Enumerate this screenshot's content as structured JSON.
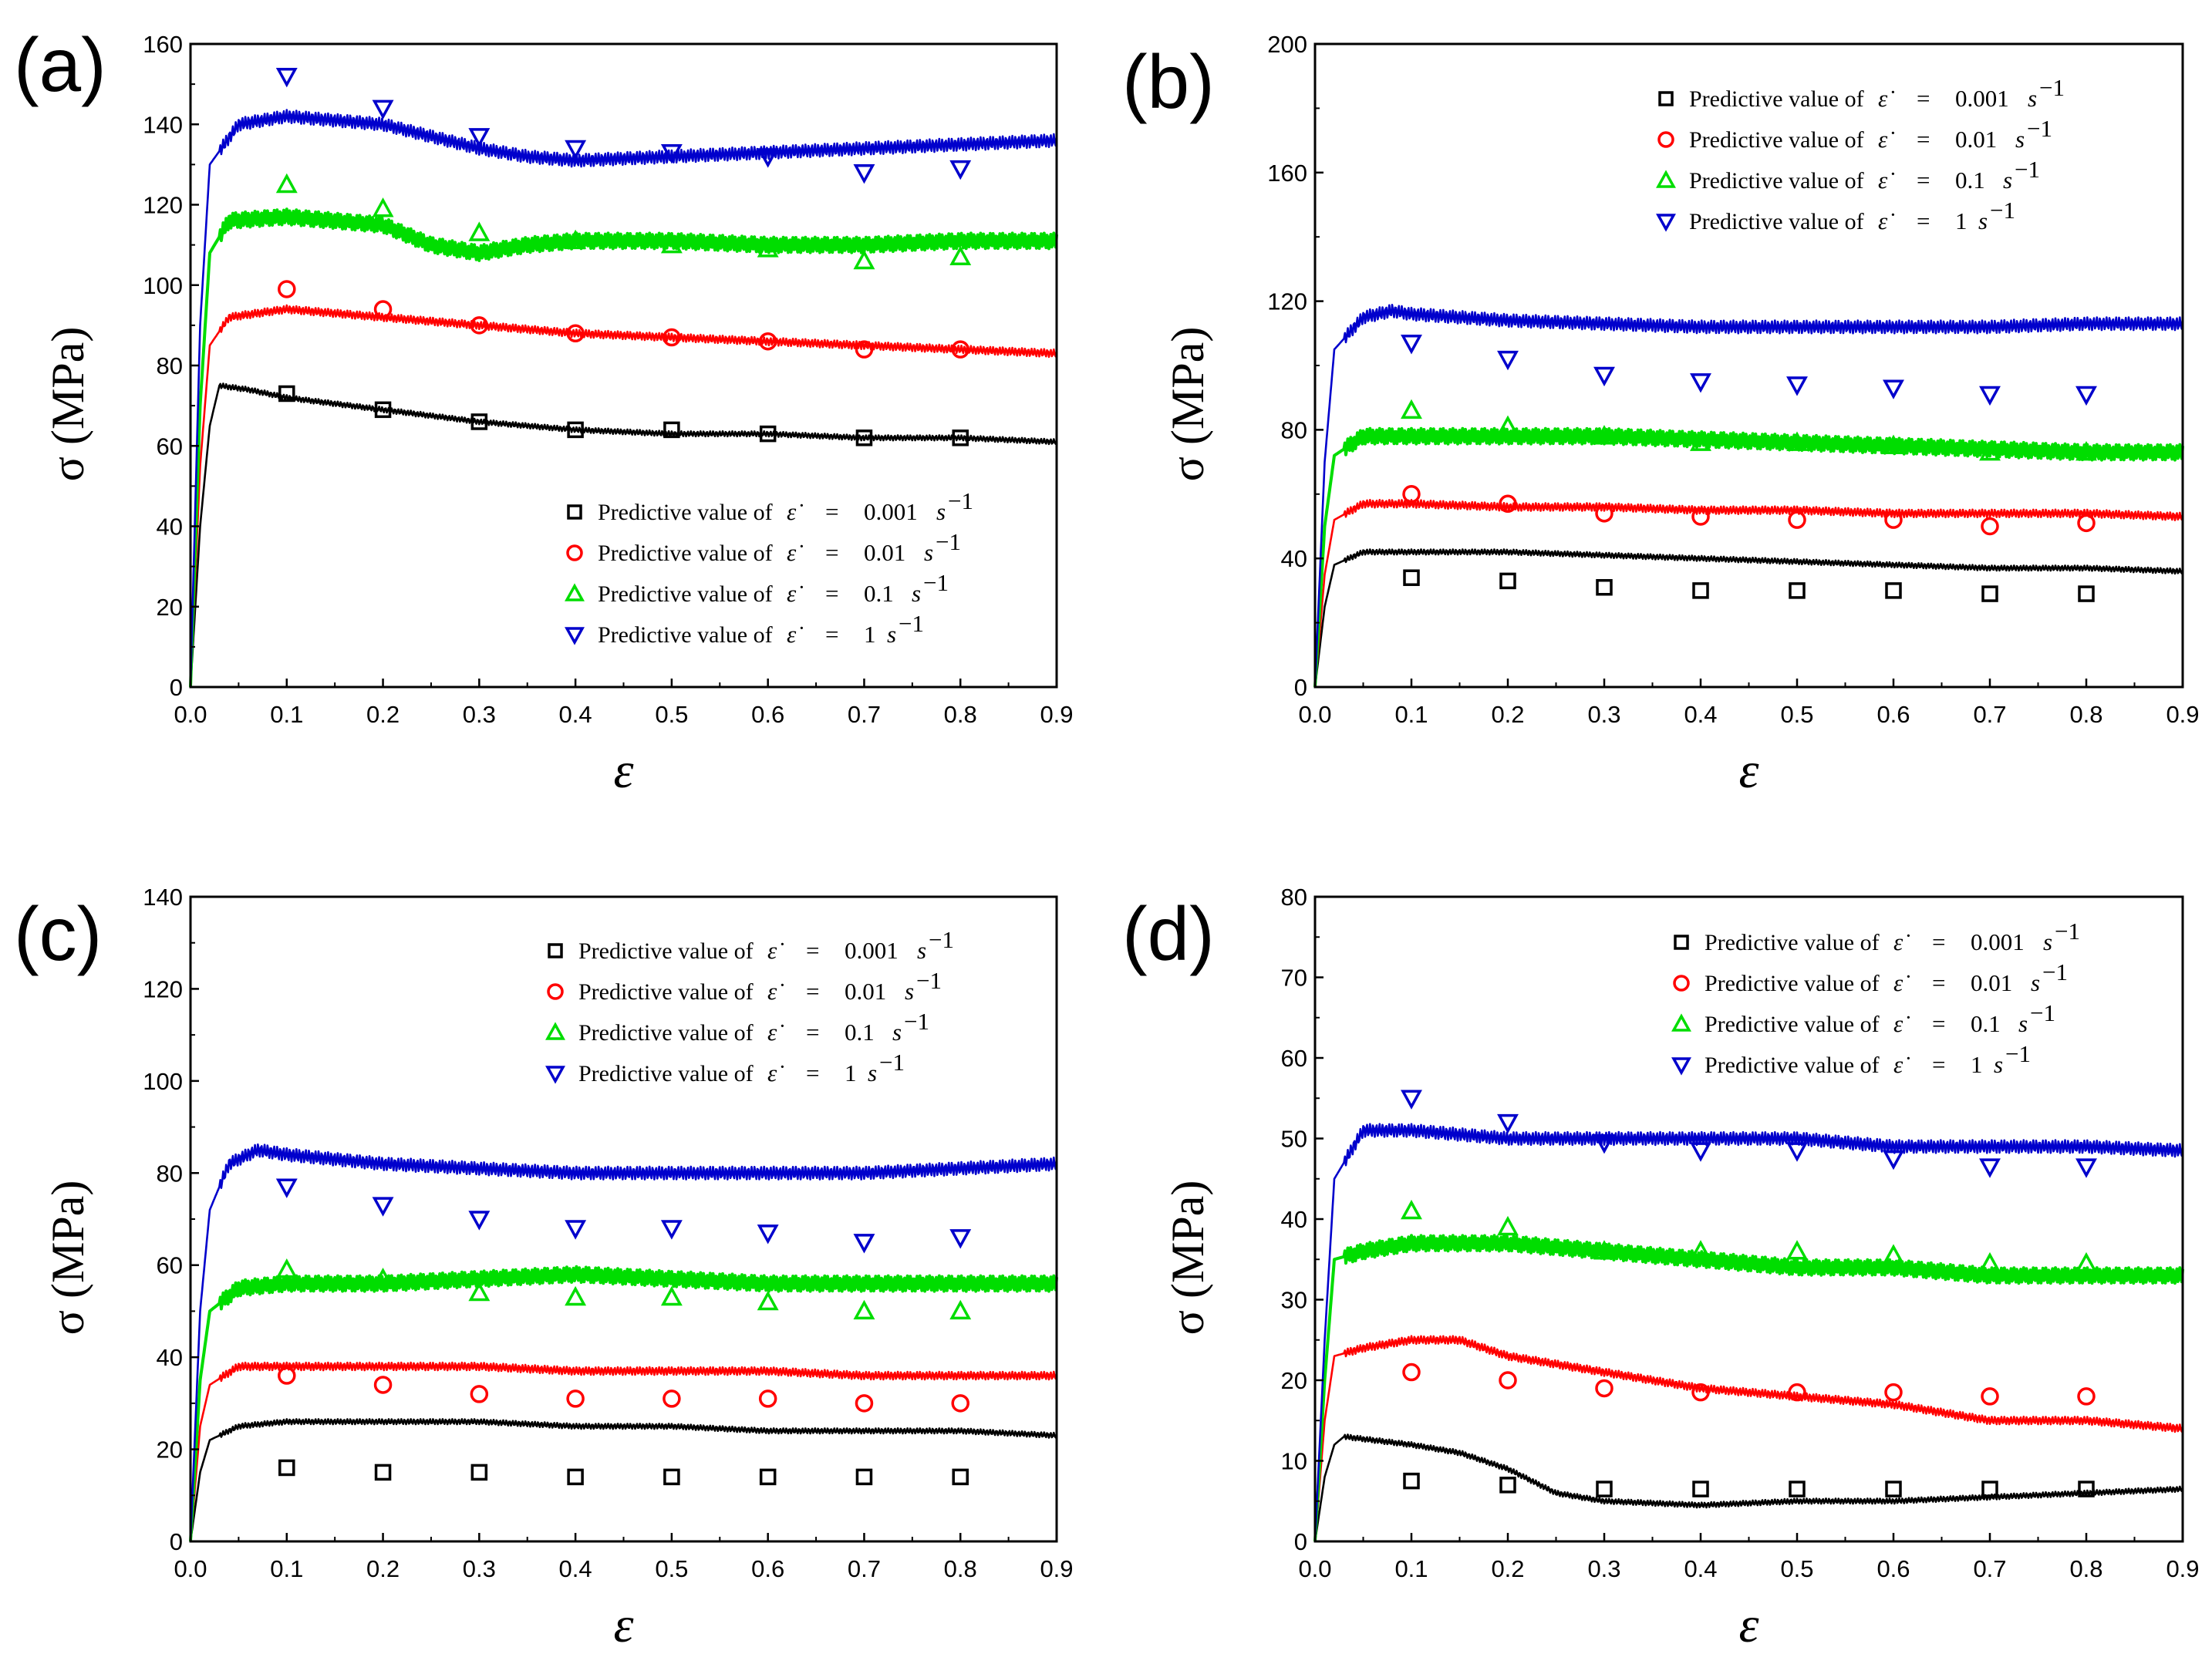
{
  "figure": {
    "legend_prefix": "Predictive value of",
    "legend_var": "ε̇",
    "legend_eq": "=",
    "legend_unit": "s",
    "legend_unit_exp": "−1",
    "legend_rates": [
      "0.001",
      "0.01",
      "0.1",
      "1"
    ],
    "series_colors": [
      "#000000",
      "#ff0000",
      "#00dd00",
      "#0000cc"
    ],
    "marker_shapes": [
      "square",
      "circle",
      "triangle-up",
      "triangle-down"
    ]
  },
  "chart_data": [
    {
      "label": "(a)",
      "type": "line",
      "xlabel": "ε",
      "ylabel": "σ (MPa)",
      "xlim": [
        0.0,
        0.9
      ],
      "ylim": [
        0,
        160
      ],
      "xticks": [
        "0.0",
        "0.1",
        "0.2",
        "0.3",
        "0.4",
        "0.5",
        "0.6",
        "0.7",
        "0.8",
        "0.9"
      ],
      "yticks": [
        "0",
        "20",
        "40",
        "60",
        "80",
        "100",
        "120",
        "140",
        "160"
      ],
      "legend_position": "bottom-right",
      "experimental": [
        {
          "name": "0.001 s-1",
          "x": [
            0,
            0.01,
            0.02,
            0.03,
            0.06,
            0.1,
            0.2,
            0.3,
            0.4,
            0.5,
            0.6,
            0.7,
            0.8,
            0.9
          ],
          "y": [
            0,
            40,
            65,
            75,
            74,
            72,
            69,
            66,
            64,
            63,
            63,
            62,
            62,
            61
          ]
        },
        {
          "name": "0.01 s-1",
          "x": [
            0,
            0.01,
            0.02,
            0.04,
            0.1,
            0.2,
            0.3,
            0.4,
            0.5,
            0.6,
            0.7,
            0.8,
            0.9
          ],
          "y": [
            0,
            55,
            85,
            92,
            94,
            92,
            90,
            88,
            87,
            86,
            85,
            84,
            83
          ]
        },
        {
          "name": "0.1 s-1",
          "x": [
            0,
            0.01,
            0.02,
            0.04,
            0.1,
            0.2,
            0.25,
            0.3,
            0.35,
            0.4,
            0.5,
            0.6,
            0.7,
            0.8,
            0.9
          ],
          "y": [
            0,
            70,
            108,
            116,
            117,
            115,
            110,
            108,
            110,
            111,
            111,
            110,
            110,
            111,
            111
          ]
        },
        {
          "name": "1 s-1",
          "x": [
            0,
            0.01,
            0.02,
            0.05,
            0.1,
            0.2,
            0.25,
            0.3,
            0.35,
            0.4,
            0.5,
            0.6,
            0.7,
            0.8,
            0.9
          ],
          "y": [
            0,
            90,
            130,
            140,
            142,
            140,
            137,
            134,
            132,
            131,
            132,
            133,
            134,
            135,
            136
          ]
        }
      ],
      "predicted_x": [
        0.1,
        0.2,
        0.3,
        0.4,
        0.5,
        0.6,
        0.7,
        0.8
      ],
      "predicted": [
        [
          73,
          69,
          66,
          64,
          64,
          63,
          62,
          62
        ],
        [
          99,
          94,
          90,
          88,
          87,
          86,
          84,
          84
        ],
        [
          125,
          119,
          113,
          111,
          110,
          109,
          106,
          107
        ],
        [
          152,
          144,
          137,
          134,
          133,
          132,
          128,
          129
        ]
      ]
    },
    {
      "label": "(b)",
      "type": "line",
      "xlabel": "ε",
      "ylabel": "σ (MPa)",
      "xlim": [
        0.0,
        0.9
      ],
      "ylim": [
        0,
        200
      ],
      "xticks": [
        "0.0",
        "0.1",
        "0.2",
        "0.3",
        "0.4",
        "0.5",
        "0.6",
        "0.7",
        "0.8",
        "0.9"
      ],
      "yticks": [
        "0",
        "40",
        "80",
        "120",
        "160",
        "200"
      ],
      "legend_position": "top-right",
      "experimental": [
        {
          "name": "0.001 s-1",
          "x": [
            0,
            0.01,
            0.02,
            0.05,
            0.1,
            0.2,
            0.3,
            0.4,
            0.5,
            0.6,
            0.7,
            0.8,
            0.9
          ],
          "y": [
            0,
            25,
            38,
            42,
            42,
            42,
            41,
            40,
            39,
            38,
            37,
            37,
            36
          ]
        },
        {
          "name": "0.01 s-1",
          "x": [
            0,
            0.01,
            0.02,
            0.05,
            0.1,
            0.2,
            0.3,
            0.4,
            0.5,
            0.6,
            0.7,
            0.8,
            0.9
          ],
          "y": [
            0,
            35,
            52,
            57,
            57,
            56,
            56,
            55,
            55,
            54,
            54,
            54,
            53
          ]
        },
        {
          "name": "0.1 s-1",
          "x": [
            0,
            0.01,
            0.02,
            0.05,
            0.1,
            0.2,
            0.3,
            0.4,
            0.5,
            0.6,
            0.7,
            0.8,
            0.9
          ],
          "y": [
            0,
            50,
            72,
            78,
            78,
            78,
            78,
            77,
            76,
            75,
            74,
            73,
            73
          ]
        },
        {
          "name": "1 s-1",
          "x": [
            0,
            0.01,
            0.02,
            0.05,
            0.08,
            0.1,
            0.2,
            0.3,
            0.4,
            0.5,
            0.6,
            0.7,
            0.8,
            0.9
          ],
          "y": [
            0,
            70,
            105,
            115,
            117,
            116,
            114,
            113,
            112,
            112,
            112,
            112,
            113,
            113
          ]
        }
      ],
      "predicted_x": [
        0.1,
        0.2,
        0.3,
        0.4,
        0.5,
        0.6,
        0.7,
        0.8
      ],
      "predicted": [
        [
          34,
          33,
          31,
          30,
          30,
          30,
          29,
          29
        ],
        [
          60,
          57,
          54,
          53,
          52,
          52,
          50,
          51
        ],
        [
          86,
          81,
          78,
          76,
          76,
          75,
          73,
          73
        ],
        [
          107,
          102,
          97,
          95,
          94,
          93,
          91,
          91
        ]
      ]
    },
    {
      "label": "(c)",
      "type": "line",
      "xlabel": "ε",
      "ylabel": "σ (MPa)",
      "xlim": [
        0.0,
        0.9
      ],
      "ylim": [
        0,
        140
      ],
      "xticks": [
        "0.0",
        "0.1",
        "0.2",
        "0.3",
        "0.4",
        "0.5",
        "0.6",
        "0.7",
        "0.8",
        "0.9"
      ],
      "yticks": [
        "0",
        "20",
        "40",
        "60",
        "80",
        "100",
        "120",
        "140"
      ],
      "legend_position": "top-right",
      "experimental": [
        {
          "name": "0.001 s-1",
          "x": [
            0,
            0.01,
            0.02,
            0.05,
            0.1,
            0.2,
            0.3,
            0.4,
            0.5,
            0.6,
            0.7,
            0.8,
            0.9
          ],
          "y": [
            0,
            15,
            22,
            25,
            26,
            26,
            26,
            25,
            25,
            24,
            24,
            24,
            23
          ]
        },
        {
          "name": "0.01 s-1",
          "x": [
            0,
            0.01,
            0.02,
            0.05,
            0.1,
            0.2,
            0.3,
            0.4,
            0.5,
            0.6,
            0.7,
            0.8,
            0.9
          ],
          "y": [
            0,
            25,
            34,
            38,
            38,
            38,
            38,
            37,
            37,
            37,
            36,
            36,
            36
          ]
        },
        {
          "name": "0.1 s-1",
          "x": [
            0,
            0.01,
            0.02,
            0.05,
            0.1,
            0.2,
            0.3,
            0.4,
            0.5,
            0.6,
            0.7,
            0.8,
            0.9
          ],
          "y": [
            0,
            35,
            50,
            55,
            56,
            56,
            57,
            58,
            57,
            56,
            56,
            56,
            56
          ]
        },
        {
          "name": "1 s-1",
          "x": [
            0,
            0.01,
            0.02,
            0.04,
            0.07,
            0.1,
            0.2,
            0.3,
            0.4,
            0.5,
            0.6,
            0.7,
            0.8,
            0.9
          ],
          "y": [
            0,
            50,
            72,
            82,
            85,
            84,
            82,
            81,
            80,
            80,
            80,
            80,
            81,
            82
          ]
        }
      ],
      "predicted_x": [
        0.1,
        0.2,
        0.3,
        0.4,
        0.5,
        0.6,
        0.7,
        0.8
      ],
      "predicted": [
        [
          16,
          15,
          15,
          14,
          14,
          14,
          14,
          14
        ],
        [
          36,
          34,
          32,
          31,
          31,
          31,
          30,
          30
        ],
        [
          59,
          57,
          54,
          53,
          53,
          52,
          50,
          50
        ],
        [
          77,
          73,
          70,
          68,
          68,
          67,
          65,
          66
        ]
      ]
    },
    {
      "label": "(d)",
      "type": "line",
      "xlabel": "ε",
      "ylabel": "σ (MPa)",
      "xlim": [
        0.0,
        0.9
      ],
      "ylim": [
        0,
        80
      ],
      "xticks": [
        "0.0",
        "0.1",
        "0.2",
        "0.3",
        "0.4",
        "0.5",
        "0.6",
        "0.7",
        "0.8",
        "0.9"
      ],
      "yticks": [
        "0",
        "10",
        "20",
        "30",
        "40",
        "50",
        "60",
        "70",
        "80"
      ],
      "legend_position": "top-right",
      "experimental": [
        {
          "name": "0.001 s-1",
          "x": [
            0,
            0.01,
            0.02,
            0.03,
            0.1,
            0.15,
            0.2,
            0.25,
            0.3,
            0.4,
            0.5,
            0.6,
            0.7,
            0.8,
            0.9
          ],
          "y": [
            0,
            8,
            12,
            13,
            12,
            11,
            9,
            6,
            5,
            4.5,
            5,
            5,
            5.5,
            6,
            6.5
          ]
        },
        {
          "name": "0.01 s-1",
          "x": [
            0,
            0.01,
            0.02,
            0.05,
            0.1,
            0.15,
            0.2,
            0.3,
            0.4,
            0.5,
            0.6,
            0.7,
            0.8,
            0.9
          ],
          "y": [
            0,
            15,
            23,
            24,
            25,
            25,
            23,
            21,
            19,
            18,
            17,
            15,
            15,
            14
          ]
        },
        {
          "name": "0.1 s-1",
          "x": [
            0,
            0.01,
            0.02,
            0.05,
            0.1,
            0.2,
            0.3,
            0.4,
            0.5,
            0.6,
            0.7,
            0.8,
            0.9
          ],
          "y": [
            0,
            20,
            35,
            36,
            37,
            37,
            36,
            35,
            34,
            34,
            33,
            33,
            33
          ]
        },
        {
          "name": "1 s-1",
          "x": [
            0,
            0.01,
            0.02,
            0.05,
            0.1,
            0.2,
            0.3,
            0.4,
            0.5,
            0.6,
            0.7,
            0.8,
            0.9
          ],
          "y": [
            0,
            25,
            45,
            51,
            51,
            50,
            50,
            50,
            50,
            49,
            49,
            49,
            48.5
          ]
        }
      ],
      "predicted_x": [
        0.1,
        0.2,
        0.3,
        0.4,
        0.5,
        0.6,
        0.7,
        0.8
      ],
      "predicted": [
        [
          7.5,
          7,
          6.5,
          6.5,
          6.5,
          6.5,
          6.5,
          6.5
        ],
        [
          21,
          20,
          19,
          18.5,
          18.5,
          18.5,
          18,
          18
        ],
        [
          41,
          39,
          36,
          36,
          36,
          35.5,
          34.5,
          34.5
        ],
        [
          55,
          52,
          49.5,
          48.5,
          48.5,
          47.5,
          46.5,
          46.5
        ]
      ]
    }
  ]
}
